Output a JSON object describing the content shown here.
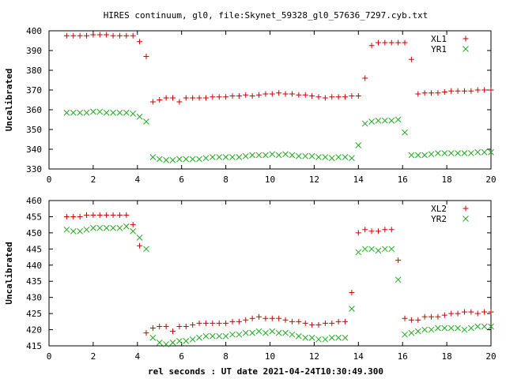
{
  "chart_data": {
    "type": "scatter",
    "title": "HIRES continuum, gl0, file:Skynet_59328_gl0_57636_7297.cyb.txt",
    "xlabel": "rel seconds : UT date 2021-04-24T10:30:49.300",
    "colors": {
      "plus": "#cc0000",
      "cross": "#22aa22"
    },
    "panels": [
      {
        "ylabel": "Uncalibrated",
        "xlim": [
          0,
          20
        ],
        "ylim": [
          330,
          400
        ],
        "xticks": [
          0,
          2,
          4,
          6,
          8,
          10,
          12,
          14,
          16,
          18,
          20
        ],
        "yticks": [
          330,
          340,
          350,
          360,
          370,
          380,
          390,
          400
        ],
        "legend_position": "top-right",
        "series": [
          {
            "name": "XL1",
            "marker": "plus",
            "x": [
              0.8,
              1.1,
              1.4,
              1.7,
              2.0,
              2.3,
              2.6,
              2.9,
              3.2,
              3.5,
              3.8,
              4.1,
              4.4,
              4.7,
              5.0,
              5.3,
              5.6,
              5.9,
              6.2,
              6.5,
              6.8,
              7.1,
              7.4,
              7.7,
              8.0,
              8.3,
              8.6,
              8.9,
              9.2,
              9.5,
              9.8,
              10.1,
              10.4,
              10.7,
              11.0,
              11.3,
              11.6,
              11.9,
              12.2,
              12.5,
              12.8,
              13.1,
              13.4,
              13.7,
              14.0,
              14.3,
              14.6,
              14.9,
              15.2,
              15.5,
              15.8,
              16.1,
              16.4,
              16.7,
              17.0,
              17.3,
              17.6,
              17.9,
              18.2,
              18.5,
              18.8,
              19.1,
              19.4,
              19.7,
              20.0
            ],
            "y": [
              397.5,
              397.5,
              397.5,
              397.5,
              398,
              398,
              398,
              397.5,
              397.5,
              397.5,
              397.5,
              394.5,
              387,
              364,
              365,
              366,
              366,
              364,
              366,
              366,
              366,
              366,
              366.5,
              366.5,
              366.5,
              367,
              367,
              367.5,
              367,
              367.5,
              368,
              368,
              368.5,
              368,
              368,
              367.5,
              367.5,
              367,
              366.5,
              366,
              366.5,
              366.5,
              366.5,
              367,
              367,
              376,
              392.5,
              394,
              394,
              394,
              394,
              394,
              385.5,
              368,
              368.5,
              368.5,
              368.5,
              369,
              369.5,
              369.5,
              369.5,
              369.5,
              370,
              370,
              370
            ]
          },
          {
            "name": "YR1",
            "marker": "cross",
            "x": [
              0.8,
              1.1,
              1.4,
              1.7,
              2.0,
              2.3,
              2.6,
              2.9,
              3.2,
              3.5,
              3.8,
              4.1,
              4.4,
              4.7,
              5.0,
              5.3,
              5.6,
              5.9,
              6.2,
              6.5,
              6.8,
              7.1,
              7.4,
              7.7,
              8.0,
              8.3,
              8.6,
              8.9,
              9.2,
              9.5,
              9.8,
              10.1,
              10.4,
              10.7,
              11.0,
              11.3,
              11.6,
              11.9,
              12.2,
              12.5,
              12.8,
              13.1,
              13.4,
              13.7,
              14.0,
              14.3,
              14.6,
              14.9,
              15.2,
              15.5,
              15.8,
              16.1,
              16.4,
              16.7,
              17.0,
              17.3,
              17.6,
              17.9,
              18.2,
              18.5,
              18.8,
              19.1,
              19.4,
              19.7,
              20.0
            ],
            "y": [
              358.5,
              358.5,
              358.5,
              358.5,
              359,
              359,
              358.5,
              358.5,
              358.5,
              358.5,
              358,
              356.5,
              354,
              336,
              335,
              334.5,
              334.5,
              335,
              335,
              335,
              335,
              335.5,
              336,
              336,
              336,
              336,
              336,
              336.5,
              337,
              337,
              337,
              337.5,
              337,
              337.5,
              337,
              336.5,
              336.5,
              336.5,
              336,
              336,
              335.5,
              336,
              336,
              335.5,
              342,
              353,
              354,
              354.5,
              354.5,
              354.5,
              355,
              348.5,
              337,
              337,
              337,
              337.5,
              338,
              338,
              338,
              338,
              338,
              338,
              338.5,
              338.5,
              338.5
            ]
          }
        ]
      },
      {
        "ylabel": "Uncalibrated",
        "xlim": [
          0,
          20
        ],
        "ylim": [
          415,
          460
        ],
        "xticks": [
          0,
          2,
          4,
          6,
          8,
          10,
          12,
          14,
          16,
          18,
          20
        ],
        "yticks": [
          415,
          420,
          425,
          430,
          435,
          440,
          445,
          450,
          455,
          460
        ],
        "legend_position": "top-right",
        "series": [
          {
            "name": "XL2",
            "marker": "plus",
            "x": [
              0.8,
              1.1,
              1.4,
              1.7,
              2.0,
              2.3,
              2.6,
              2.9,
              3.2,
              3.5,
              3.8,
              4.1,
              4.4,
              4.7,
              5.0,
              5.3,
              5.6,
              5.9,
              6.2,
              6.5,
              6.8,
              7.1,
              7.4,
              7.7,
              8.0,
              8.3,
              8.6,
              8.9,
              9.2,
              9.5,
              9.8,
              10.1,
              10.4,
              10.7,
              11.0,
              11.3,
              11.6,
              11.9,
              12.2,
              12.5,
              12.8,
              13.1,
              13.4,
              13.7,
              14.0,
              14.3,
              14.6,
              14.9,
              15.2,
              15.5,
              15.8,
              16.1,
              16.4,
              16.7,
              17.0,
              17.3,
              17.6,
              17.9,
              18.2,
              18.5,
              18.8,
              19.1,
              19.4,
              19.7,
              20.0
            ],
            "y": [
              455,
              455,
              455,
              455.5,
              455.5,
              455.5,
              455.5,
              455.5,
              455.5,
              455.5,
              452.5,
              446,
              419,
              420.5,
              421,
              421,
              419.5,
              421,
              421,
              421.5,
              422,
              422,
              422,
              422,
              422,
              422.5,
              422.5,
              423,
              423.5,
              424,
              423.5,
              423.5,
              423.5,
              423,
              422.5,
              422.5,
              422,
              421.5,
              421.5,
              422,
              422,
              422.5,
              422.5,
              431.5,
              450,
              451,
              450.5,
              450.5,
              451,
              451,
              441.5,
              423.5,
              423,
              423,
              424,
              424,
              424,
              424.5,
              425,
              425,
              425.5,
              425.5,
              425,
              425.5,
              425.5
            ]
          },
          {
            "name": "YR2",
            "marker": "cross",
            "x": [
              0.8,
              1.1,
              1.4,
              1.7,
              2.0,
              2.3,
              2.6,
              2.9,
              3.2,
              3.5,
              3.8,
              4.1,
              4.4,
              4.7,
              5.0,
              5.3,
              5.6,
              5.9,
              6.2,
              6.5,
              6.8,
              7.1,
              7.4,
              7.7,
              8.0,
              8.3,
              8.6,
              8.9,
              9.2,
              9.5,
              9.8,
              10.1,
              10.4,
              10.7,
              11.0,
              11.3,
              11.6,
              11.9,
              12.2,
              12.5,
              12.8,
              13.1,
              13.4,
              13.7,
              14.0,
              14.3,
              14.6,
              14.9,
              15.2,
              15.5,
              15.8,
              16.1,
              16.4,
              16.7,
              17.0,
              17.3,
              17.6,
              17.9,
              18.2,
              18.5,
              18.8,
              19.1,
              19.4,
              19.7,
              20.0
            ],
            "y": [
              451,
              450.5,
              450.5,
              451,
              451.5,
              451.5,
              451.5,
              451.5,
              451.5,
              452,
              450.5,
              448.5,
              445,
              417.5,
              416,
              415.5,
              416,
              416.5,
              416.5,
              417,
              417.5,
              418,
              418,
              418,
              418,
              418.5,
              418.5,
              419,
              419,
              419.5,
              419,
              419.5,
              419,
              419,
              418.5,
              418,
              417.5,
              417.5,
              417,
              417,
              417.5,
              417.5,
              417.5,
              426.5,
              444,
              445,
              445,
              444.5,
              445,
              445,
              435.5,
              418.5,
              419,
              419.5,
              420,
              420,
              420.5,
              420.5,
              420.5,
              420.5,
              420,
              420.5,
              421,
              421,
              421
            ]
          }
        ]
      }
    ]
  }
}
